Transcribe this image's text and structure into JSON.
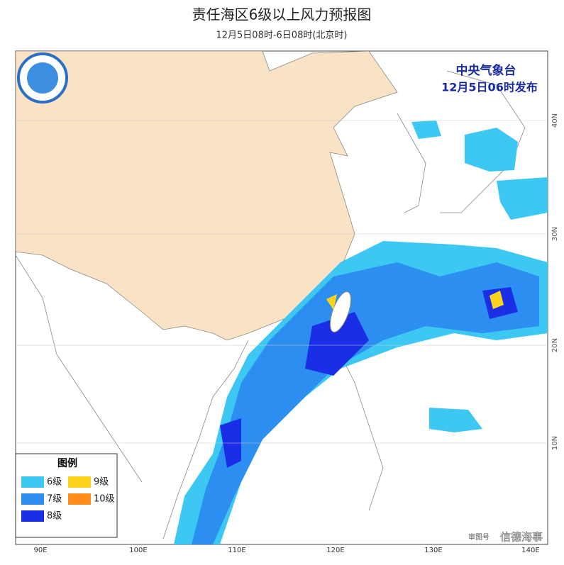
{
  "header": {
    "title": "责任海区6级以上风力预报图",
    "subtitle": "12月5日08时-6日08时(北京时)"
  },
  "map": {
    "agency": "中央气象台",
    "issued": "12月5日06时发布",
    "lon_labels": [
      "90E",
      "100E",
      "110E",
      "120E",
      "130E",
      "140E"
    ],
    "lat_labels": [
      "40N",
      "30N",
      "20N",
      "10N"
    ],
    "credit": "审图号",
    "watermark": "信德海事"
  },
  "legend": {
    "title": "图例",
    "items": [
      {
        "label": "6级",
        "color": "#3cc8f2"
      },
      {
        "label": "9级",
        "color": "#ffd21e"
      },
      {
        "label": "7级",
        "color": "#2b8ef0"
      },
      {
        "label": "10级",
        "color": "#ff8c1a"
      },
      {
        "label": "8级",
        "color": "#1a2ee6"
      }
    ]
  }
}
